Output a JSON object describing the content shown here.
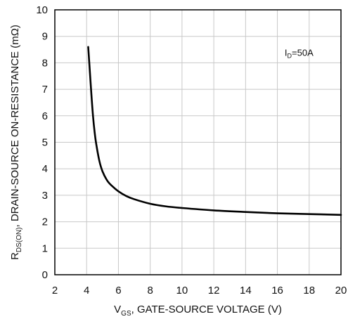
{
  "chart_data": {
    "type": "line",
    "xlabel": {
      "main": "V",
      "sub": "GS",
      "rest": ", GATE-SOURCE VOLTAGE (V)"
    },
    "ylabel": {
      "main": "R",
      "sub": "DS(ON)",
      "rest": ", DRAIN-SOURCE ON-RESISTANCE (mΩ)"
    },
    "annotation": {
      "main": "I",
      "sub": "D",
      "rest": "=50A"
    },
    "xlim": [
      2,
      20
    ],
    "ylim": [
      0,
      10
    ],
    "x_ticks": [
      "2",
      "4",
      "6",
      "8",
      "10",
      "12",
      "14",
      "16",
      "18",
      "20"
    ],
    "y_ticks": [
      "0",
      "1",
      "2",
      "3",
      "4",
      "5",
      "6",
      "7",
      "8",
      "9",
      "10"
    ],
    "grid": true,
    "series": [
      {
        "x": [
          4.1,
          4.2,
          4.3,
          4.4,
          4.5,
          4.6,
          4.8,
          5.0,
          5.3,
          5.6,
          6.0,
          6.5,
          7.0,
          8.0,
          9.0,
          10.0,
          12.0,
          14.0,
          16.0,
          18.0,
          20.0
        ],
        "y": [
          8.6,
          7.7,
          6.8,
          6.0,
          5.4,
          4.95,
          4.3,
          3.9,
          3.55,
          3.35,
          3.15,
          2.97,
          2.85,
          2.68,
          2.58,
          2.52,
          2.43,
          2.37,
          2.32,
          2.29,
          2.26
        ]
      }
    ],
    "colors": {
      "line": "#000000",
      "grid": "#c8c8c8",
      "frame": "#000000"
    }
  }
}
